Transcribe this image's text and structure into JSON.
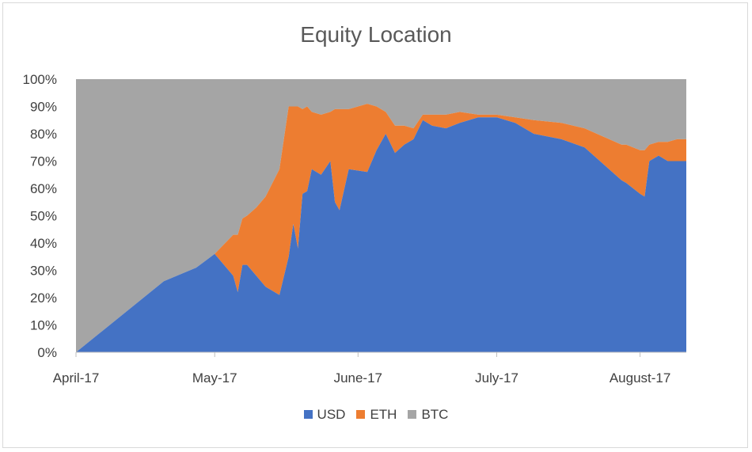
{
  "chart_data": {
    "type": "area",
    "stacked": "percent",
    "title": "Equity Location",
    "xlabel": "",
    "ylabel": "",
    "ylim": [
      0,
      100
    ],
    "y_ticks": [
      "0%",
      "10%",
      "20%",
      "30%",
      "40%",
      "50%",
      "60%",
      "70%",
      "80%",
      "90%",
      "100%"
    ],
    "x_ticks": [
      {
        "date": "2017-04-01",
        "label": "April-17"
      },
      {
        "date": "2017-05-01",
        "label": "May-17"
      },
      {
        "date": "2017-06-01",
        "label": "June-17"
      },
      {
        "date": "2017-07-01",
        "label": "July-17"
      },
      {
        "date": "2017-08-01",
        "label": "August-17"
      }
    ],
    "x_range": [
      "2017-04-01",
      "2017-08-11"
    ],
    "legend_position": "bottom",
    "x": [
      "2017-04-01",
      "2017-04-20",
      "2017-04-27",
      "2017-05-01",
      "2017-05-05",
      "2017-05-06",
      "2017-05-07",
      "2017-05-08",
      "2017-05-10",
      "2017-05-12",
      "2017-05-15",
      "2017-05-17",
      "2017-05-18",
      "2017-05-19",
      "2017-05-20",
      "2017-05-21",
      "2017-05-22",
      "2017-05-24",
      "2017-05-26",
      "2017-05-27",
      "2017-05-28",
      "2017-05-30",
      "2017-06-03",
      "2017-06-05",
      "2017-06-07",
      "2017-06-09",
      "2017-06-11",
      "2017-06-13",
      "2017-06-15",
      "2017-06-17",
      "2017-06-20",
      "2017-06-23",
      "2017-06-27",
      "2017-07-01",
      "2017-07-05",
      "2017-07-09",
      "2017-07-15",
      "2017-07-20",
      "2017-07-28",
      "2017-07-29",
      "2017-08-01",
      "2017-08-02",
      "2017-08-03",
      "2017-08-05",
      "2017-08-07",
      "2017-08-09",
      "2017-08-11"
    ],
    "series": [
      {
        "name": "USD",
        "color": "#4472c4",
        "values": [
          0,
          26,
          31,
          36,
          28,
          22,
          32,
          32,
          28,
          24,
          21,
          35,
          47,
          38,
          58,
          59,
          67,
          65,
          70,
          55,
          52,
          67,
          66,
          74,
          80,
          73,
          76,
          78,
          85,
          83,
          82,
          84,
          86,
          86,
          84,
          80,
          78,
          75,
          63,
          62,
          58,
          57,
          70,
          72,
          70,
          70,
          70
        ]
      },
      {
        "name": "ETH",
        "color": "#ed7d31",
        "values": [
          0,
          0,
          0,
          0,
          15,
          21,
          17,
          18,
          25,
          33,
          46,
          55,
          43,
          52,
          31,
          31,
          21,
          22,
          18,
          34,
          37,
          22,
          25,
          16,
          8,
          10,
          7,
          4,
          2,
          4,
          5,
          4,
          1,
          1,
          2,
          5,
          6,
          7,
          13,
          14,
          16,
          17,
          6,
          5,
          7,
          8,
          8
        ]
      },
      {
        "name": "BTC",
        "color": "#a5a5a5",
        "values": [
          100,
          74,
          69,
          64,
          57,
          57,
          51,
          50,
          47,
          43,
          33,
          10,
          10,
          10,
          11,
          10,
          12,
          13,
          12,
          11,
          11,
          11,
          9,
          10,
          12,
          17,
          17,
          18,
          13,
          13,
          13,
          12,
          13,
          13,
          14,
          15,
          16,
          18,
          24,
          24,
          26,
          26,
          24,
          23,
          23,
          22,
          22
        ]
      }
    ]
  }
}
